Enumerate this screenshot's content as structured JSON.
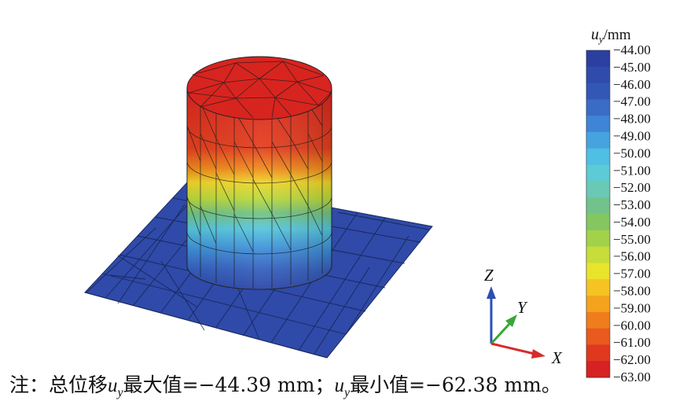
{
  "legend": {
    "title_var": "u",
    "title_sub": "y",
    "title_unit": "/mm",
    "ticks": [
      "−44.00",
      "−45.00",
      "−46.00",
      "−47.00",
      "−48.00",
      "−49.00",
      "−50.00",
      "−51.00",
      "−52.00",
      "−53.00",
      "−54.00",
      "−55.00",
      "−56.00",
      "−57.00",
      "−58.00",
      "−59.00",
      "−60.00",
      "−61.00",
      "−62.00",
      "−63.00"
    ],
    "colors": [
      "#2b3fa0",
      "#2f4bab",
      "#3257b6",
      "#3a6cc6",
      "#3f85d6",
      "#46a3e0",
      "#4fbfe3",
      "#5ccbd6",
      "#69c9b4",
      "#72c28b",
      "#84c761",
      "#a2d14a",
      "#c6dd3a",
      "#e8e42c",
      "#f5c322",
      "#f5a31d",
      "#f07d1c",
      "#e85a1e",
      "#e0381f",
      "#d62222"
    ]
  },
  "axes": {
    "z": "Z",
    "y": "Y",
    "x": "X",
    "z_color": "#2c4fb3",
    "y_color": "#3aa63a",
    "x_color": "#d62b2b"
  },
  "caption": {
    "prefix": "注：总位移",
    "var": "u",
    "sub": "y",
    "mid": "最大值=−44.39 mm；",
    "var2": "u",
    "sub2": "y",
    "suffix": "最小值=−62.38 mm。"
  }
}
